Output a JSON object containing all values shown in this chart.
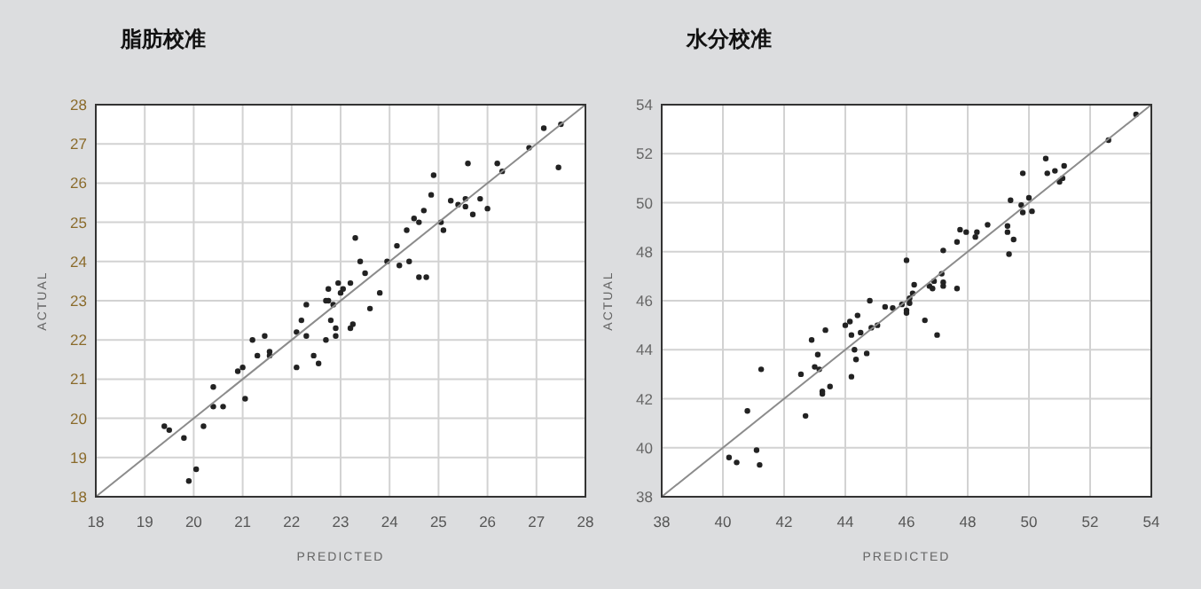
{
  "chart_data": [
    {
      "type": "scatter",
      "title": "脂肪校准",
      "xlabel": "PREDICTED",
      "ylabel": "ACTUAL",
      "xlim": [
        18,
        28
      ],
      "ylim": [
        18,
        28
      ],
      "xticks": [
        18,
        19,
        20,
        21,
        22,
        23,
        24,
        25,
        26,
        27,
        28
      ],
      "yticks": [
        18,
        19,
        20,
        21,
        22,
        23,
        24,
        25,
        26,
        27,
        28
      ],
      "grid": true,
      "series": [
        {
          "type": "scatter",
          "marker": "circle",
          "color": "#222222",
          "x": [
            19.4,
            19.5,
            19.8,
            20.2,
            19.9,
            20.05,
            20.4,
            20.4,
            20.6,
            20.9,
            21.0,
            21.05,
            21.2,
            21.3,
            21.45,
            21.55,
            21.55,
            22.1,
            22.1,
            22.2,
            22.3,
            22.3,
            22.45,
            22.55,
            22.7,
            22.7,
            22.75,
            22.75,
            22.8,
            22.85,
            22.9,
            22.9,
            22.95,
            23.0,
            23.05,
            23.2,
            23.2,
            23.25,
            23.3,
            23.4,
            23.5,
            23.6,
            23.8,
            23.95,
            24.15,
            24.2,
            24.35,
            24.4,
            24.5,
            24.6,
            24.6,
            24.7,
            24.75,
            24.85,
            24.9,
            25.05,
            25.1,
            25.25,
            25.4,
            25.55,
            25.55,
            25.6,
            25.7,
            25.85,
            26.0,
            26.2,
            26.3,
            26.85,
            27.15,
            27.45,
            27.5
          ],
          "values": [
            19.8,
            19.7,
            19.5,
            19.8,
            18.4,
            18.7,
            20.8,
            20.3,
            20.3,
            21.2,
            21.3,
            20.5,
            22.0,
            21.6,
            22.1,
            21.7,
            21.6,
            22.2,
            21.3,
            22.5,
            22.1,
            22.9,
            21.6,
            21.4,
            23.0,
            22.0,
            23.0,
            23.3,
            22.5,
            22.9,
            22.1,
            22.3,
            23.45,
            23.2,
            23.3,
            22.3,
            23.45,
            22.4,
            24.6,
            24.0,
            23.7,
            22.8,
            23.2,
            24.0,
            24.4,
            23.9,
            24.8,
            24.0,
            25.1,
            23.6,
            25.0,
            25.3,
            23.6,
            25.7,
            26.2,
            25.0,
            24.8,
            25.55,
            25.45,
            25.4,
            25.6,
            26.5,
            25.2,
            25.6,
            25.35,
            26.5,
            26.3,
            26.9,
            27.4,
            26.4,
            27.5
          ]
        },
        {
          "type": "line",
          "color": "#8c8c8c",
          "x": [
            18,
            28
          ],
          "values": [
            18,
            28
          ]
        }
      ]
    },
    {
      "type": "scatter",
      "title": "水分校准",
      "xlabel": "PREDICTED",
      "ylabel": "ACTUAL",
      "xlim": [
        38,
        54
      ],
      "ylim": [
        38,
        54
      ],
      "xticks": [
        38,
        40,
        42,
        44,
        46,
        48,
        50,
        52,
        54
      ],
      "yticks": [
        38,
        40,
        42,
        44,
        46,
        48,
        50,
        52,
        54
      ],
      "grid": true,
      "series": [
        {
          "type": "scatter",
          "marker": "circle",
          "color": "#222222",
          "x": [
            40.2,
            40.45,
            40.8,
            41.1,
            41.2,
            41.25,
            42.55,
            42.7,
            42.9,
            43.0,
            43.1,
            43.15,
            43.25,
            43.25,
            43.35,
            43.5,
            44.0,
            44.15,
            44.2,
            44.2,
            44.3,
            44.35,
            44.4,
            44.5,
            44.7,
            44.8,
            44.85,
            45.05,
            45.3,
            45.55,
            45.85,
            46.0,
            46.0,
            46.0,
            46.1,
            46.1,
            46.2,
            46.25,
            46.6,
            46.75,
            46.85,
            46.9,
            47.0,
            47.15,
            47.2,
            47.2,
            47.2,
            47.65,
            47.65,
            47.75,
            47.95,
            48.25,
            48.3,
            48.65,
            49.3,
            49.3,
            49.35,
            49.4,
            49.5,
            49.75,
            49.8,
            49.8,
            50.0,
            50.1,
            50.55,
            50.6,
            50.85,
            51.0,
            51.1,
            51.15,
            52.6,
            53.5
          ],
          "values": [
            39.6,
            39.4,
            41.5,
            39.9,
            39.3,
            43.2,
            43.0,
            41.3,
            44.4,
            43.3,
            43.8,
            43.2,
            42.3,
            42.2,
            44.8,
            42.5,
            45.0,
            45.15,
            44.6,
            42.9,
            44.0,
            43.6,
            45.4,
            44.7,
            43.85,
            46.0,
            44.9,
            45.0,
            45.75,
            45.7,
            45.85,
            47.65,
            45.6,
            45.5,
            45.9,
            46.1,
            46.3,
            46.65,
            45.2,
            46.6,
            46.5,
            46.8,
            44.6,
            47.1,
            46.75,
            46.6,
            48.05,
            46.5,
            48.4,
            48.9,
            48.8,
            48.6,
            48.8,
            49.1,
            49.05,
            48.8,
            47.9,
            50.1,
            48.5,
            49.9,
            51.2,
            49.6,
            50.2,
            49.65,
            51.8,
            51.2,
            51.3,
            50.85,
            51.0,
            51.5,
            52.55,
            53.6
          ]
        },
        {
          "type": "line",
          "color": "#8c8c8c",
          "x": [
            38,
            54
          ],
          "values": [
            38,
            54
          ]
        }
      ]
    }
  ]
}
